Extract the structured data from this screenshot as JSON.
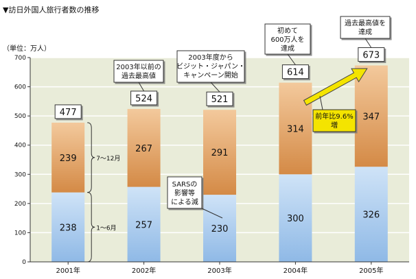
{
  "title": "▼訪日外国人旅行者数の推移",
  "unit_label": "（単位：万人）",
  "colors": {
    "plot_bg": "#e9ecd9",
    "grid": "#ffffff",
    "h1_top": "#cfe3f7",
    "h1_bottom": "#8fb9e6",
    "h2_top": "#f3c99c",
    "h2_bottom": "#d48a46",
    "arrow": "#f4e400",
    "axis": "#333333"
  },
  "brace_labels": {
    "h2": "7〜12月",
    "h1": "1〜6月"
  },
  "callouts": {
    "y2002": [
      "2003年以前の",
      "過去最高値"
    ],
    "y2003": [
      "2003年度から",
      "ビジット・ジャパン・",
      "キャンペーン開始"
    ],
    "y2004": [
      "初めて",
      "600万人を",
      "達成"
    ],
    "y2005": [
      "過去最高値を",
      "達成"
    ],
    "sars": [
      "SARSの",
      "影響等",
      "による減"
    ],
    "growth": [
      "前年比9.6%",
      "増"
    ]
  },
  "chart_data": {
    "type": "bar",
    "stacked": true,
    "categories": [
      "2001年",
      "2002年",
      "2003年",
      "2004年",
      "2005年"
    ],
    "series": [
      {
        "name": "1〜6月",
        "values": [
          238,
          257,
          230,
          300,
          326
        ]
      },
      {
        "name": "7〜12月",
        "values": [
          239,
          267,
          291,
          314,
          347
        ]
      }
    ],
    "totals": [
      477,
      524,
      521,
      614,
      673
    ],
    "ylim": [
      0,
      700
    ],
    "yticks": [
      0,
      100,
      200,
      300,
      400,
      500,
      600,
      700
    ],
    "ylabel": "（単位：万人）",
    "grid": true
  }
}
